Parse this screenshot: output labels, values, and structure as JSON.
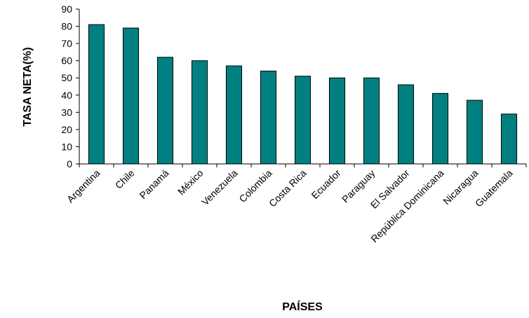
{
  "chart_data": {
    "type": "bar",
    "title": "",
    "xlabel": "PAÍSES",
    "ylabel": "TASA NETA(%)",
    "ylim": [
      0,
      90
    ],
    "yticks": [
      0,
      10,
      20,
      30,
      40,
      50,
      60,
      70,
      80,
      90
    ],
    "grid": false,
    "legend": "none",
    "bar_color": "#008080",
    "bar_edge_color": "#000000",
    "categories": [
      "Argentina",
      "Chile",
      "Panamá",
      "México",
      "Venezuela",
      "Colombia",
      "Costa Rica",
      "Ecuador",
      "Paraguay",
      "El Salvador",
      "República Dominicana",
      "Nicaragua",
      "Guatemala"
    ],
    "values": [
      81,
      79,
      62,
      60,
      57,
      54,
      51,
      50,
      50,
      46,
      41,
      37,
      29
    ]
  }
}
